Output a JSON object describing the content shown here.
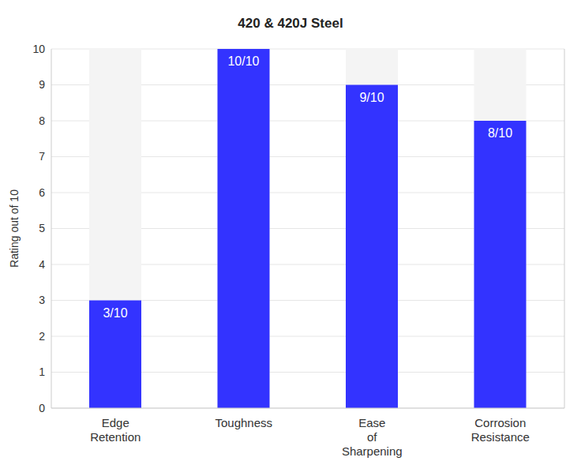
{
  "chart_data": {
    "type": "bar",
    "title": "420 & 420J Steel",
    "y_label": "Rating out of 10",
    "categories": [
      "Edge Retention",
      "Toughness",
      "Ease of Sharpening",
      "Corrosion Resistance"
    ],
    "values": [
      3,
      10,
      9,
      8
    ],
    "value_labels": [
      "3/10",
      "10/10",
      "9/10",
      "8/10"
    ],
    "data_labels": true,
    "color": "#3333ff",
    "ylim": [
      0,
      10
    ],
    "yticks": [
      0,
      1,
      2,
      3,
      4,
      5,
      6,
      7,
      8,
      9,
      10
    ],
    "grid": true
  }
}
